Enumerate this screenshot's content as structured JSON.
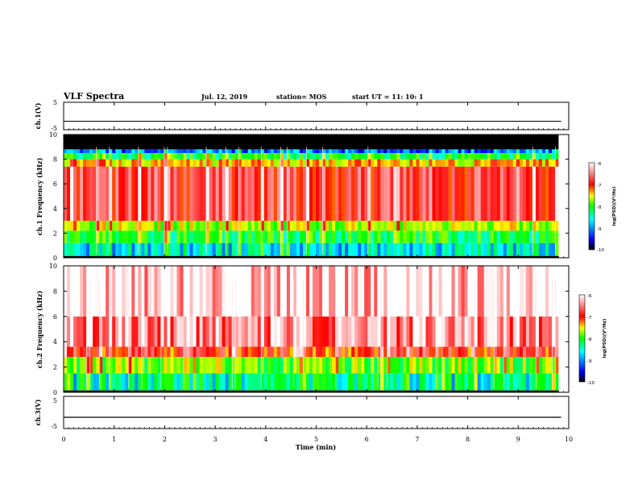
{
  "header": {
    "title": "VLF Spectra",
    "date": "Jul. 12, 2019",
    "station": "station= MOS",
    "start": "start UT =  11: 10: 1"
  },
  "chart_data": [
    {
      "type": "line",
      "panel": "ch1-voltage",
      "ylabel": "ch.1(V)",
      "yticks": [
        "5",
        "-5"
      ],
      "ylim": [
        -5,
        5
      ],
      "x": [
        0,
        1,
        2,
        3,
        4,
        5,
        6,
        7,
        8,
        9,
        9.85
      ],
      "y": [
        -1.9,
        -1.9,
        -1.9,
        -1.9,
        -1.9,
        -1.9,
        -1.9,
        -1.9,
        -1.9,
        -1.9,
        -1.9
      ]
    },
    {
      "type": "heatmap",
      "panel": "ch1-spectrogram",
      "ylabel": "ch.1 Frequency (kHz)",
      "ylim": [
        0,
        10
      ],
      "yticks": [
        "0",
        "2",
        "4",
        "6",
        "8",
        "10"
      ],
      "bands": [
        {
          "from": 0.0,
          "to": 0.15,
          "level": -10
        },
        {
          "from": 0.15,
          "to": 1.2,
          "level": -8.8
        },
        {
          "from": 1.2,
          "to": 2.2,
          "level": -8.3
        },
        {
          "from": 2.2,
          "to": 3.0,
          "level": -7.8
        },
        {
          "from": 3.0,
          "to": 7.4,
          "level": -6.8
        },
        {
          "from": 7.4,
          "to": 8.0,
          "level": -7.5
        },
        {
          "from": 8.0,
          "to": 8.5,
          "level": -8.3
        },
        {
          "from": 8.5,
          "to": 8.8,
          "level": -9.2
        },
        {
          "from": 8.8,
          "to": 10.0,
          "level": -10
        }
      ],
      "colorbar": {
        "range": [
          -10,
          -6
        ],
        "ticks": [
          "-6",
          "-7",
          "-8",
          "-9",
          "-10"
        ],
        "label": "log(PSD)(V²/Hz)"
      }
    },
    {
      "type": "heatmap",
      "panel": "ch2-spectrogram",
      "ylabel": "ch.2 Frequency (kHz)",
      "ylim": [
        0,
        10
      ],
      "yticks": [
        "0",
        "2",
        "4",
        "6",
        "8",
        "10"
      ],
      "bands": [
        {
          "from": 0.0,
          "to": 0.15,
          "level": -10
        },
        {
          "from": 0.15,
          "to": 1.5,
          "level": -8.6
        },
        {
          "from": 1.5,
          "to": 2.8,
          "level": -8.0
        },
        {
          "from": 2.8,
          "to": 3.6,
          "level": -7.0
        },
        {
          "from": 3.6,
          "to": 6.0,
          "level": -6.5
        },
        {
          "from": 6.0,
          "to": 10.0,
          "level": -6.2
        }
      ],
      "colorbar": {
        "range": [
          -10,
          -6
        ],
        "ticks": [
          "-6",
          "-7",
          "-8",
          "-9",
          "-10"
        ],
        "label": "log(PSD)(V²/Hz)"
      }
    },
    {
      "type": "line",
      "panel": "ch3-voltage",
      "ylabel": "ch.3(V)",
      "yticks": [
        "5",
        "-5"
      ],
      "ylim": [
        -5,
        5
      ],
      "x": [
        0,
        1,
        2,
        3,
        4,
        5,
        6,
        7,
        8,
        9,
        9.85
      ],
      "y": [
        -1.5,
        -1.5,
        -1.5,
        -1.5,
        -1.5,
        -1.5,
        -1.5,
        -1.5,
        -1.5,
        -1.5,
        -1.5
      ]
    }
  ],
  "xaxis": {
    "xlabel": "Time (min)",
    "xlim": [
      0,
      10
    ],
    "ticks": [
      "0",
      "1",
      "2",
      "3",
      "4",
      "5",
      "6",
      "7",
      "8",
      "9",
      "10"
    ]
  },
  "colors": {
    "black": "#000000",
    "blue": "#0000ff",
    "cyan": "#00ffff",
    "green": "#00ff00",
    "yellow": "#ffff00",
    "red": "#ff0000",
    "white": "#ffffff"
  }
}
